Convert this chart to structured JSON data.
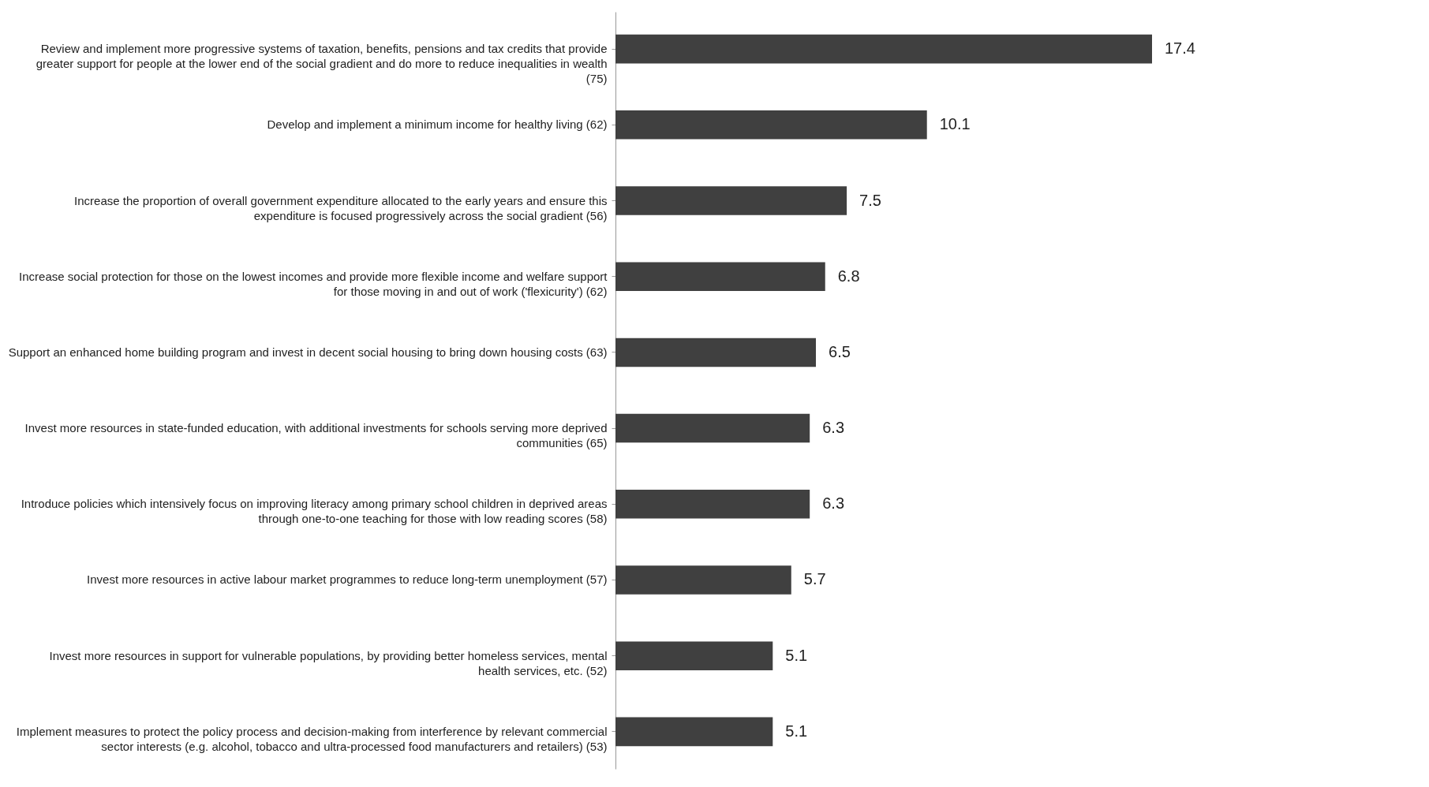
{
  "chart_data": {
    "type": "bar",
    "orientation": "horizontal",
    "data_labels": true,
    "color": "#404040",
    "categories": [
      "Review and implement more progressive systems of taxation, benefits, pensions and tax credits that provide greater support for people at the lower end of the social gradient and do more to reduce inequalities in wealth (75)",
      "Develop and implement a minimum income for healthy living (62)",
      "Increase the proportion of overall government expenditure allocated to the early years and ensure this expenditure is focused progressively across the social gradient (56)",
      "Increase social protection for those on the lowest incomes and provide more flexible income and welfare support for those moving in and out of work ('flexicurity') (62)",
      "Support an enhanced home building program and invest in decent social housing to bring down housing costs (63)",
      "Invest more resources in state-funded education, with additional investments for schools serving more deprived communities (65)",
      "Introduce policies which intensively focus on improving literacy among primary school children in deprived areas through one-to-one teaching for those with low reading scores (58)",
      "Invest more resources in active labour market programmes to reduce long-term unemployment (57)",
      "Invest more resources in support for vulnerable populations, by providing better homeless services, mental health services, etc. (52)",
      "Implement measures to protect the policy process and decision-making from interference by relevant commercial sector interests (e.g. alcohol, tobacco and ultra-processed food manufacturers and retailers) (53)"
    ],
    "values": [
      17.4,
      10.1,
      7.5,
      6.8,
      6.5,
      6.3,
      6.3,
      5.7,
      5.1,
      5.1
    ]
  }
}
